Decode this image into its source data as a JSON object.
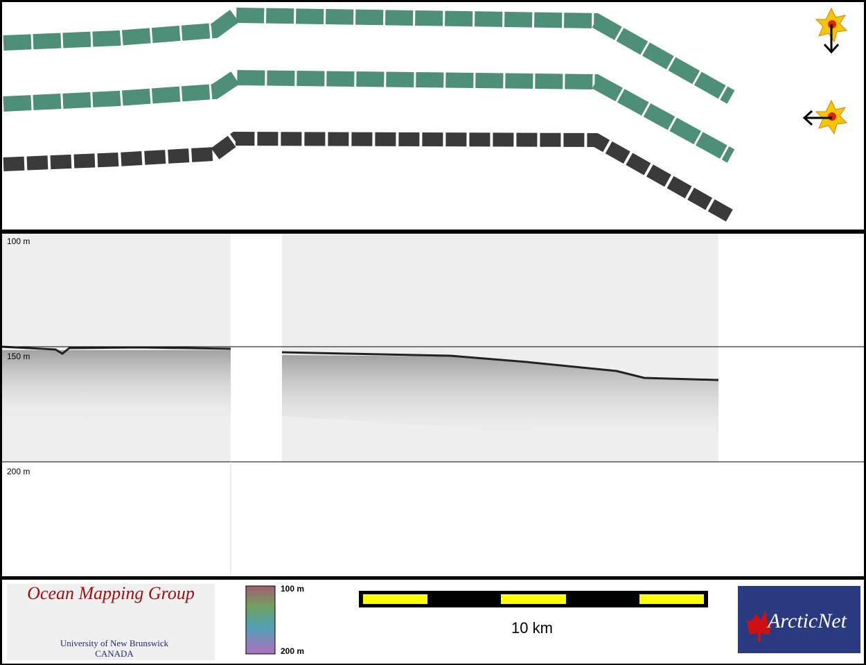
{
  "echogram": {
    "depth_labels": [
      "100 m",
      "150 m",
      "200 m"
    ]
  },
  "legend": {
    "depth_top": "100 m",
    "depth_bottom": "200 m"
  },
  "scale_bar": {
    "label": "10 km"
  },
  "logos": {
    "omg": {
      "title": "Ocean Mapping Group",
      "university": "University of New Brunswick",
      "country": "CANADA"
    },
    "arcticnet": "ArcticNet"
  }
}
